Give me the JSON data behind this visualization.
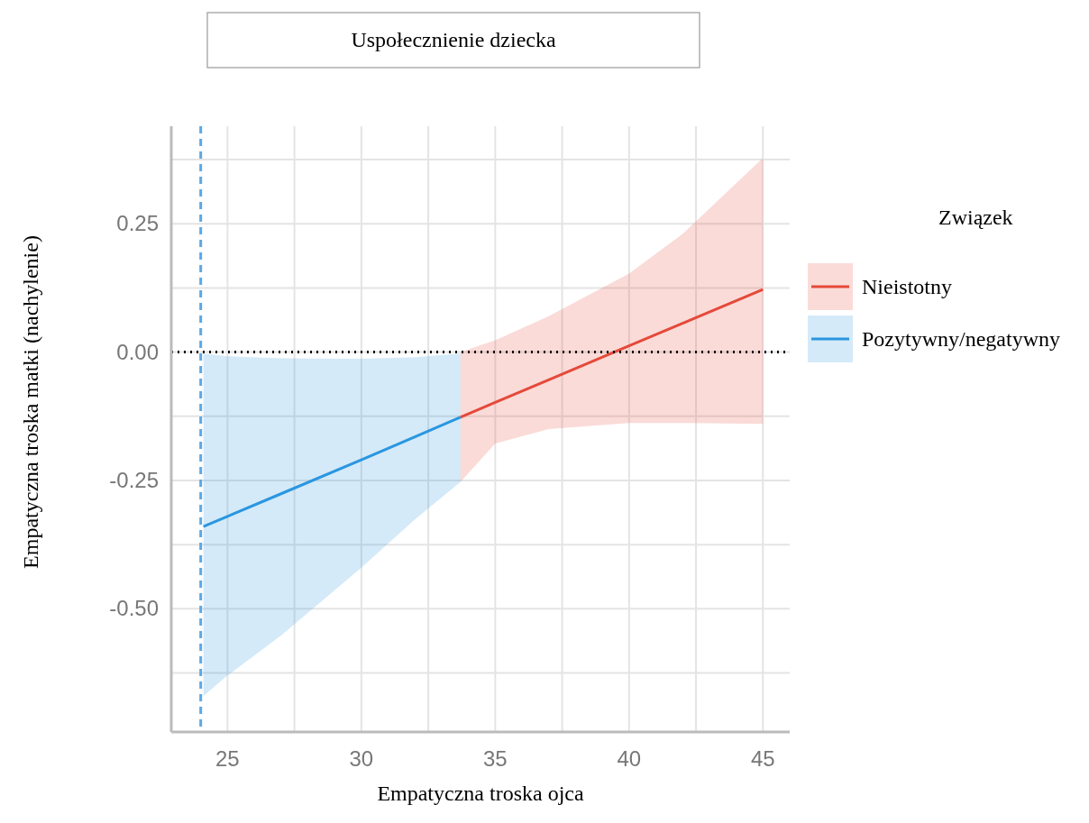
{
  "chart_data": {
    "type": "line",
    "title": "Uspołecznienie dziecka",
    "xlabel": "Empatyczna troska ojca",
    "ylabel": "Empatyczna troska matki (nachylenie)",
    "legend_title": "Związek",
    "xlim": [
      22.9,
      46
    ],
    "ylim": [
      -0.74,
      0.44
    ],
    "xticks": [
      25,
      {
        "value": 27.5,
        "label": null
      },
      30,
      {
        "value": 32.5,
        "label": null
      },
      35,
      {
        "value": 37.5,
        "label": null
      },
      40,
      {
        "value": 42.5,
        "label": null
      },
      45
    ],
    "yticks": [
      {
        "value": -0.625,
        "label": null
      },
      {
        "value": -0.5,
        "label": "-0.50"
      },
      {
        "value": -0.375,
        "label": null
      },
      -0.25,
      {
        "value": -0.125,
        "label": null
      },
      {
        "value": 0,
        "label": "0.00"
      },
      {
        "value": 0.125,
        "label": null
      },
      0.25,
      {
        "value": 0.375,
        "label": null
      }
    ],
    "grid": true,
    "legend": "right",
    "series": [
      {
        "name": "Nieistotny",
        "color": "#e5493a",
        "x": [
          33.7,
          35,
          37,
          40,
          42,
          45
        ],
        "values": [
          -0.127,
          -0.098,
          -0.054,
          0.012,
          0.056,
          0.122
        ],
        "lower": [
          -0.253,
          -0.178,
          -0.15,
          -0.138,
          -0.138,
          -0.14
        ],
        "upper": [
          0,
          0.023,
          0.07,
          0.153,
          0.23,
          0.378
        ]
      },
      {
        "name": "Pozytywny/negatywny",
        "color": "#2a96e0",
        "x": [
          24.1,
          25,
          27,
          30,
          32,
          33.7
        ],
        "values": [
          -0.34,
          -0.32,
          -0.276,
          -0.21,
          -0.165,
          -0.127
        ],
        "lower": [
          -0.67,
          -0.63,
          -0.552,
          -0.42,
          -0.326,
          -0.253
        ],
        "upper": [
          -0.003,
          -0.008,
          -0.012,
          -0.013,
          -0.01,
          -0.003
        ]
      }
    ],
    "ref_lines": [
      {
        "axis": "y",
        "value": 0,
        "color": "#000000",
        "line_style": "dotted"
      },
      {
        "axis": "x",
        "value": 24,
        "color": "#5aa8e6",
        "line_style": "dashed"
      }
    ]
  }
}
